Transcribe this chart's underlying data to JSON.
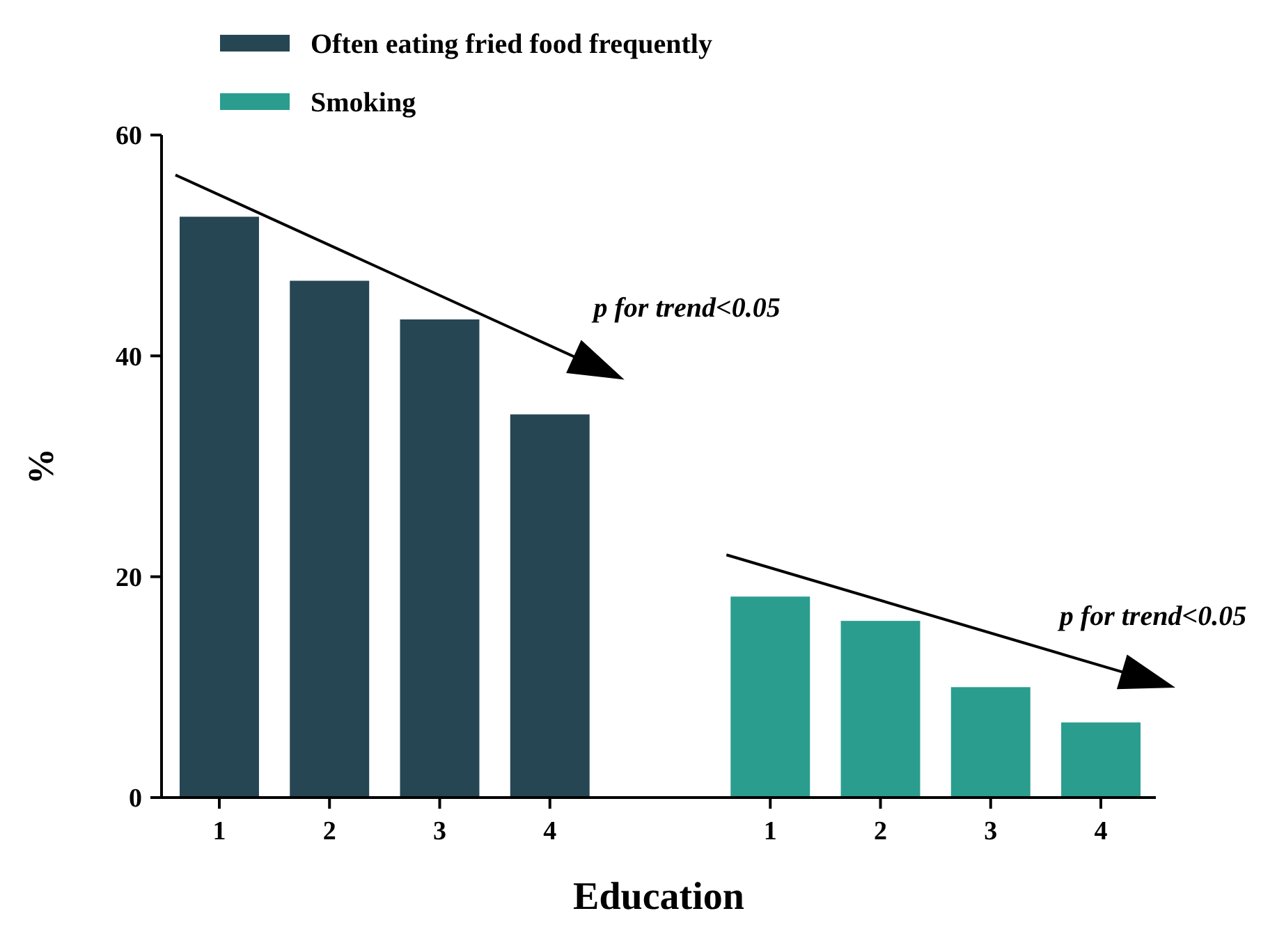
{
  "chart_data": {
    "type": "bar",
    "xlabel": "Education",
    "ylabel": "%",
    "categories": [
      "1",
      "2",
      "3",
      "4",
      null,
      "1",
      "2",
      "3",
      "4"
    ],
    "series": [
      {
        "name": "Often eating fried food frequently",
        "color": "#264653",
        "values": [
          52.6,
          46.8,
          43.3,
          34.7,
          null,
          null,
          null,
          null,
          null
        ]
      },
      {
        "name": "Smoking",
        "color": "#2a9d8f",
        "values": [
          null,
          null,
          null,
          null,
          null,
          18.2,
          16.0,
          10.0,
          6.8
        ]
      }
    ],
    "ylim": [
      0,
      60
    ],
    "yticks": [
      0,
      20,
      40,
      60
    ],
    "grid": false,
    "legend": "top left",
    "annotations": [
      "p for trend<0.05",
      "p for trend<0.05"
    ]
  }
}
